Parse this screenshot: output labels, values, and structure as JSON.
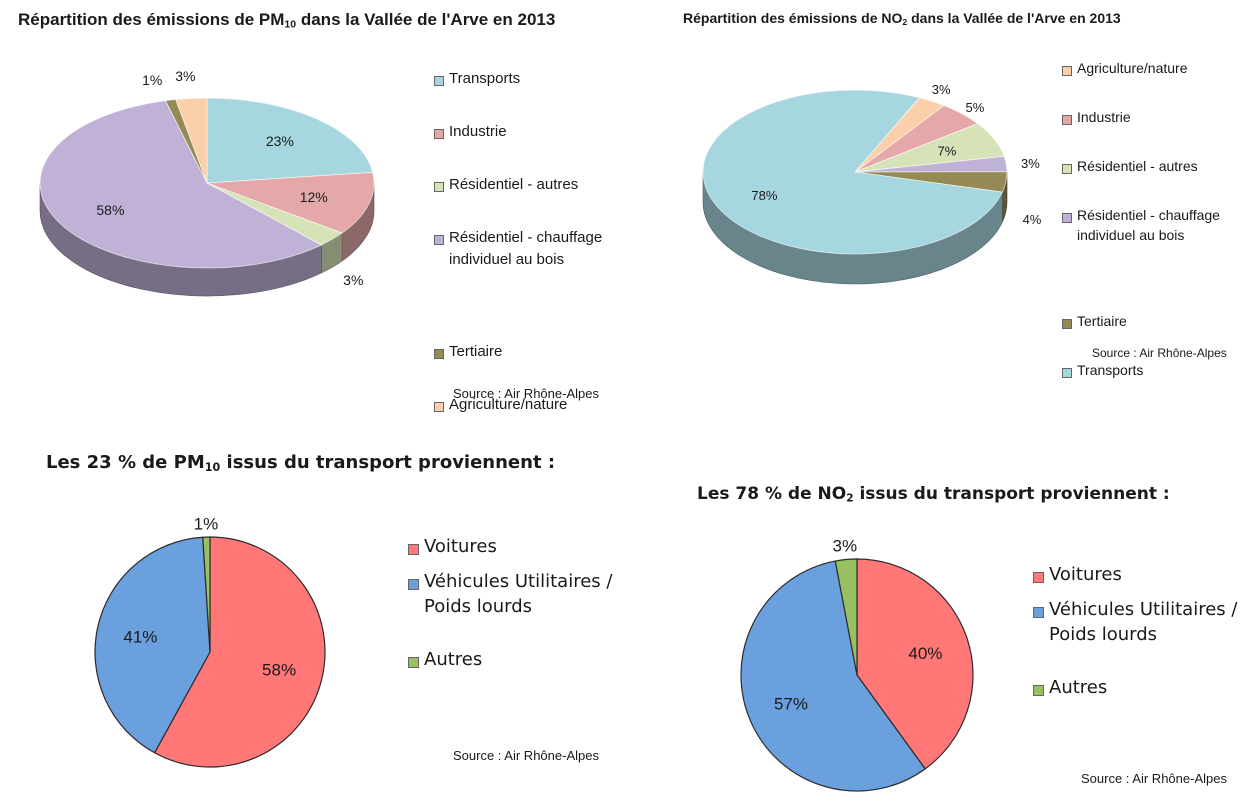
{
  "chart_data": [
    {
      "type": "pie",
      "style": "3d",
      "title": "Répartition des émissions de PM10 dans la Vallée de l'Arve en 2013",
      "title_parts": {
        "before": "Répartition des émissions de PM",
        "sub": "10",
        "after": " dans la Vallée de l'Arve en 2013"
      },
      "legend_position": "right",
      "slices": [
        {
          "label": "Transports",
          "lines": [
            "Transports"
          ],
          "value": 23,
          "display": "23%",
          "color": "#a6d7e0"
        },
        {
          "label": "Industrie",
          "lines": [
            "Industrie"
          ],
          "value": 12,
          "display": "12%",
          "color": "#e4a8a8"
        },
        {
          "label": "Résidentiel - autres",
          "lines": [
            "Résidentiel - autres"
          ],
          "value": 3,
          "display": "3%",
          "color": "#d6e3b8"
        },
        {
          "label": "Résidentiel - chauffage individuel au bois",
          "lines": [
            "Résidentiel - chauffage",
            "individuel au bois"
          ],
          "value": 58,
          "display": "58%",
          "color": "#c0b2d6"
        },
        {
          "label": "Tertiaire",
          "lines": [
            "Tertiaire"
          ],
          "value": 1,
          "display": "1%",
          "color": "#948a54"
        },
        {
          "label": "Agriculture/nature",
          "lines": [
            "Agriculture/nature"
          ],
          "value": 3,
          "display": "3%",
          "color": "#fbcfa9"
        }
      ],
      "source": "Source : Air Rhône-Alpes"
    },
    {
      "type": "pie",
      "style": "3d",
      "title": "Répartition des émissions de NO2 dans la Vallée de l'Arve en 2013",
      "title_parts": {
        "before": "Répartition des émissions de NO",
        "sub": "2",
        "after": " dans la Vallée de l'Arve en 2013"
      },
      "legend_position": "right",
      "slices": [
        {
          "label": "Agriculture/nature",
          "lines": [
            "Agriculture/nature"
          ],
          "value": 3,
          "display": "3%",
          "color": "#fbcfa9"
        },
        {
          "label": "Industrie",
          "lines": [
            "Industrie"
          ],
          "value": 5,
          "display": "5%",
          "color": "#e4a8a8"
        },
        {
          "label": "Résidentiel - autres",
          "lines": [
            "Résidentiel - autres"
          ],
          "value": 7,
          "display": "7%",
          "color": "#d6e3b8"
        },
        {
          "label": "Résidentiel - chauffage individuel au bois",
          "lines": [
            "Résidentiel - chauffage",
            "individuel au bois"
          ],
          "value": 3,
          "display": "3%",
          "color": "#c0b2d6"
        },
        {
          "label": "Tertiaire",
          "lines": [
            "Tertiaire"
          ],
          "value": 4,
          "display": "4%",
          "color": "#948a54"
        },
        {
          "label": "Transports",
          "lines": [
            "Transports"
          ],
          "value": 78,
          "display": "78%",
          "color": "#a6d7e0"
        }
      ],
      "source": "Source : Air Rhône-Alpes"
    },
    {
      "type": "pie",
      "title": "Les 23 % de PM10 issus du transport proviennent :",
      "title_parts": {
        "before": "Les 23 % de PM",
        "sub": "10",
        "after": " issus du transport proviennent :"
      },
      "legend_position": "right",
      "slices": [
        {
          "label": "Voitures",
          "lines": [
            "Voitures"
          ],
          "value": 58,
          "display": "58%",
          "color": "#ff7777"
        },
        {
          "label": "Véhicules Utilitaires / Poids lourds",
          "lines": [
            "Véhicules Utilitaires /",
            "Poids lourds"
          ],
          "value": 41,
          "display": "41%",
          "color": "#6aa0dd"
        },
        {
          "label": "Autres",
          "lines": [
            "Autres"
          ],
          "value": 1,
          "display": "1%",
          "color": "#98c060"
        }
      ],
      "source": "Source : Air Rhône-Alpes"
    },
    {
      "type": "pie",
      "title": "Les 78 % de NO2 issus du transport proviennent :",
      "title_parts": {
        "before": "Les 78 % de NO",
        "sub": "2",
        "after": " issus du transport proviennent :"
      },
      "legend_position": "right",
      "slices": [
        {
          "label": "Voitures",
          "lines": [
            "Voitures"
          ],
          "value": 40,
          "display": "40%",
          "color": "#ff7777"
        },
        {
          "label": "Véhicules Utilitaires / Poids lourds",
          "lines": [
            "Véhicules Utilitaires /",
            "Poids lourds"
          ],
          "value": 57,
          "display": "57%",
          "color": "#6aa0dd"
        },
        {
          "label": "Autres",
          "lines": [
            "Autres"
          ],
          "value": 3,
          "display": "3%",
          "color": "#98c060"
        }
      ],
      "source": "Source : Air Rhône-Alpes"
    }
  ]
}
